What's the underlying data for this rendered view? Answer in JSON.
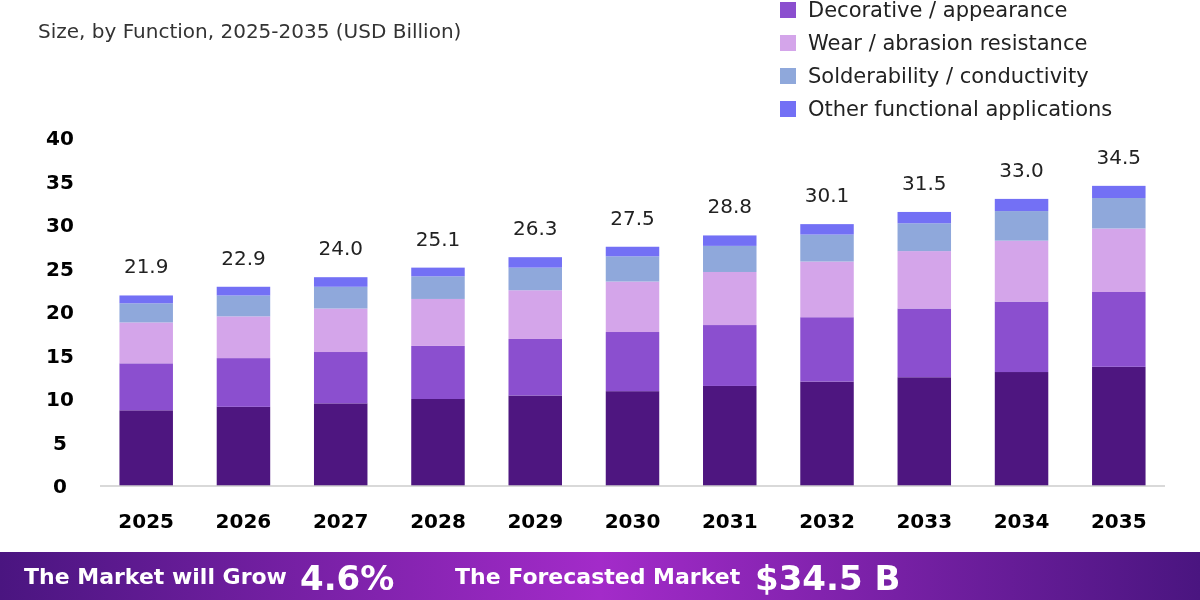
{
  "chart_data": {
    "type": "bar",
    "stacked": true,
    "subtitle": "Size, by Function, 2025-2035 (USD Billion)",
    "categories": [
      "2025",
      "2026",
      "2027",
      "2028",
      "2029",
      "2030",
      "2031",
      "2032",
      "2033",
      "2034",
      "2035"
    ],
    "series": [
      {
        "color": "#4e1680",
        "values": [
          8.7,
          9.1,
          9.5,
          10.0,
          10.4,
          10.9,
          11.5,
          12.0,
          12.5,
          13.1,
          13.7
        ]
      },
      {
        "name": "Decorative / appearance",
        "color": "#8b4fcf",
        "values": [
          5.4,
          5.6,
          5.9,
          6.1,
          6.5,
          6.8,
          7.0,
          7.4,
          7.9,
          8.1,
          8.6
        ]
      },
      {
        "name": "Wear / abrasion resistance",
        "color": "#d4a5ea",
        "values": [
          4.7,
          4.8,
          5.0,
          5.4,
          5.6,
          5.8,
          6.1,
          6.4,
          6.6,
          7.0,
          7.3
        ]
      },
      {
        "name": "Solderability / conductivity",
        "color": "#8fa8db",
        "values": [
          2.2,
          2.4,
          2.5,
          2.6,
          2.6,
          2.9,
          3.0,
          3.1,
          3.2,
          3.4,
          3.5
        ]
      },
      {
        "name": "Other functional applications",
        "color": "#7370f5",
        "values": [
          0.9,
          1.0,
          1.1,
          1.0,
          1.2,
          1.1,
          1.2,
          1.2,
          1.3,
          1.4,
          1.4
        ]
      }
    ],
    "totals": [
      "21.9",
      "22.9",
      "24.0",
      "25.1",
      "26.3",
      "27.5",
      "28.8",
      "30.1",
      "31.5",
      "33.0",
      "34.5"
    ],
    "ylim": [
      0,
      40
    ],
    "yticks": [
      0,
      5,
      10,
      15,
      20,
      25,
      30,
      35,
      40
    ],
    "grid": false,
    "legend": "top right",
    "annotations": [
      "The Market will Grow",
      "4.6%",
      "The Forecasted Market",
      "$34.5 B"
    ]
  }
}
